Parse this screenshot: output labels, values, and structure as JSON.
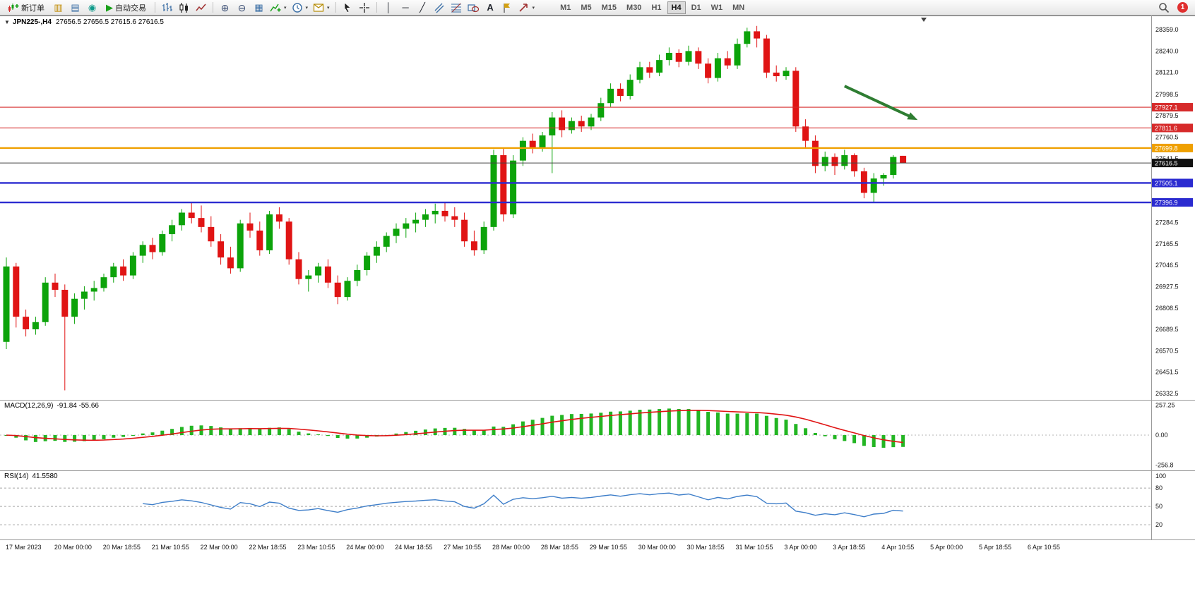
{
  "toolbar": {
    "new_order_label": "新订单",
    "autotrading_label": "自动交易",
    "timeframes": [
      "M1",
      "M5",
      "M15",
      "M30",
      "H1",
      "H4",
      "D1",
      "W1",
      "MN"
    ],
    "active_timeframe": "H4",
    "text_tool_label": "A",
    "notification_badge": "1"
  },
  "icons": {
    "one_click": "▼",
    "new_chart": "▥",
    "profiles": "▤",
    "data_window": "◉",
    "autotrading_play": "▶",
    "zoom_in": "⊕",
    "zoom_out": "⊖",
    "tiles": "▦",
    "vline": "│",
    "hline": "─",
    "trendline": "╱",
    "caret": "▾"
  },
  "chart": {
    "title_symbol": "JPN225-,H4",
    "title_ohlc": "27656.5 27656.5 27615.6 27616.5"
  },
  "colors": {
    "up": "#0ca30a",
    "down": "#e01414",
    "macd_hist": "#23b523",
    "macd_signal": "#e01414",
    "rsi_line": "#3e7ec9",
    "line_red": "#d62a2a",
    "line_orange": "#efa000",
    "line_blue": "#2b2bd0",
    "current_price_bg": "#111111",
    "arrow_green": "#2e7d32"
  },
  "chart_data": {
    "type": "candlestick",
    "symbol": "JPN225-",
    "timeframe": "H4",
    "ylim": [
      26297,
      28438
    ],
    "candles": [
      [
        26620,
        27090,
        26580,
        27040
      ],
      [
        27040,
        27060,
        26700,
        26760
      ],
      [
        26760,
        26800,
        26650,
        26690
      ],
      [
        26690,
        26760,
        26660,
        26730
      ],
      [
        26730,
        26980,
        26710,
        26950
      ],
      [
        26950,
        27000,
        26870,
        26910
      ],
      [
        26910,
        26940,
        26350,
        26760
      ],
      [
        26760,
        26890,
        26720,
        26860
      ],
      [
        26860,
        26930,
        26800,
        26900
      ],
      [
        26900,
        26960,
        26850,
        26920
      ],
      [
        26920,
        27000,
        26900,
        26980
      ],
      [
        26980,
        27060,
        26950,
        27040
      ],
      [
        27040,
        27080,
        26960,
        26990
      ],
      [
        26990,
        27120,
        26970,
        27100
      ],
      [
        27100,
        27180,
        27060,
        27160
      ],
      [
        27160,
        27200,
        27080,
        27120
      ],
      [
        27120,
        27240,
        27100,
        27220
      ],
      [
        27220,
        27300,
        27180,
        27270
      ],
      [
        27270,
        27360,
        27240,
        27340
      ],
      [
        27340,
        27400,
        27280,
        27310
      ],
      [
        27310,
        27380,
        27230,
        27260
      ],
      [
        27260,
        27320,
        27150,
        27180
      ],
      [
        27180,
        27220,
        27050,
        27090
      ],
      [
        27090,
        27150,
        27000,
        27030
      ],
      [
        27030,
        27300,
        27010,
        27280
      ],
      [
        27280,
        27340,
        27200,
        27240
      ],
      [
        27240,
        27290,
        27100,
        27130
      ],
      [
        27130,
        27350,
        27110,
        27330
      ],
      [
        27330,
        27370,
        27250,
        27290
      ],
      [
        27290,
        27310,
        27050,
        27080
      ],
      [
        27080,
        27120,
        26940,
        26970
      ],
      [
        26970,
        27020,
        26900,
        26990
      ],
      [
        26990,
        27060,
        26950,
        27040
      ],
      [
        27040,
        27080,
        26920,
        26950
      ],
      [
        26950,
        26990,
        26830,
        26870
      ],
      [
        26870,
        26980,
        26850,
        26960
      ],
      [
        26960,
        27050,
        26930,
        27020
      ],
      [
        27020,
        27120,
        26990,
        27100
      ],
      [
        27100,
        27180,
        27060,
        27150
      ],
      [
        27150,
        27230,
        27120,
        27210
      ],
      [
        27210,
        27280,
        27170,
        27250
      ],
      [
        27250,
        27310,
        27200,
        27280
      ],
      [
        27280,
        27340,
        27230,
        27300
      ],
      [
        27300,
        27360,
        27260,
        27330
      ],
      [
        27330,
        27390,
        27280,
        27350
      ],
      [
        27350,
        27400,
        27290,
        27320
      ],
      [
        27320,
        27370,
        27260,
        27300
      ],
      [
        27300,
        27340,
        27150,
        27180
      ],
      [
        27180,
        27240,
        27100,
        27130
      ],
      [
        27130,
        27290,
        27110,
        27260
      ],
      [
        27260,
        27690,
        27240,
        27660
      ],
      [
        27660,
        27700,
        27290,
        27330
      ],
      [
        27330,
        27660,
        27310,
        27630
      ],
      [
        27630,
        27760,
        27600,
        27740
      ],
      [
        27740,
        27780,
        27670,
        27700
      ],
      [
        27700,
        27790,
        27680,
        27770
      ],
      [
        27770,
        27900,
        27560,
        27870
      ],
      [
        27870,
        27910,
        27760,
        27800
      ],
      [
        27800,
        27870,
        27780,
        27850
      ],
      [
        27850,
        27880,
        27790,
        27820
      ],
      [
        27820,
        27890,
        27800,
        27870
      ],
      [
        27870,
        27980,
        27850,
        27950
      ],
      [
        27950,
        28060,
        27930,
        28030
      ],
      [
        28030,
        28060,
        27960,
        27990
      ],
      [
        27990,
        28110,
        27970,
        28080
      ],
      [
        28080,
        28180,
        28060,
        28150
      ],
      [
        28150,
        28180,
        28090,
        28120
      ],
      [
        28120,
        28220,
        28100,
        28190
      ],
      [
        28190,
        28260,
        28160,
        28230
      ],
      [
        28230,
        28250,
        28150,
        28180
      ],
      [
        28180,
        28270,
        28160,
        28240
      ],
      [
        28240,
        28260,
        28140,
        28170
      ],
      [
        28170,
        28200,
        28060,
        28090
      ],
      [
        28090,
        28230,
        28070,
        28200
      ],
      [
        28200,
        28240,
        28140,
        28160
      ],
      [
        28160,
        28310,
        28140,
        28280
      ],
      [
        28280,
        28370,
        28260,
        28350
      ],
      [
        28350,
        28380,
        28260,
        28310
      ],
      [
        28310,
        28330,
        28090,
        28120
      ],
      [
        28120,
        28160,
        28070,
        28100
      ],
      [
        28100,
        28150,
        28080,
        28130
      ],
      [
        28130,
        28150,
        27790,
        27820
      ],
      [
        27820,
        27860,
        27700,
        27740
      ],
      [
        27740,
        27770,
        27560,
        27600
      ],
      [
        27600,
        27680,
        27570,
        27650
      ],
      [
        27650,
        27670,
        27550,
        27600
      ],
      [
        27600,
        27690,
        27580,
        27660
      ],
      [
        27660,
        27670,
        27540,
        27570
      ],
      [
        27570,
        27590,
        27420,
        27450
      ],
      [
        27450,
        27560,
        27400,
        27530
      ],
      [
        27530,
        27560,
        27490,
        27550
      ],
      [
        27550,
        27660,
        27530,
        27650
      ],
      [
        27656.5,
        27656.5,
        27615.6,
        27616.5
      ]
    ],
    "x_axis_labels": [
      "17 Mar 2023",
      "20 Mar 00:00",
      "20 Mar 18:55",
      "21 Mar 10:55",
      "22 Mar 00:00",
      "22 Mar 18:55",
      "23 Mar 10:55",
      "24 Mar 00:00",
      "24 Mar 18:55",
      "27 Mar 10:55",
      "28 Mar 00:00",
      "28 Mar 18:55",
      "29 Mar 10:55",
      "30 Mar 00:00",
      "30 Mar 18:55",
      "31 Mar 10:55",
      "3 Apr 00:00",
      "3 Apr 18:55",
      "4 Apr 10:55",
      "5 Apr 00:00",
      "5 Apr 18:55",
      "6 Apr 10:55"
    ],
    "y_axis_labels": [
      {
        "t": "28359.0",
        "v": 28359.0
      },
      {
        "t": "28240.0",
        "v": 28240.0
      },
      {
        "t": "28121.0",
        "v": 28121.0
      },
      {
        "t": "27998.5",
        "v": 27998.5
      },
      {
        "t": "27879.5",
        "v": 27879.5
      },
      {
        "t": "27760.5",
        "v": 27760.5
      },
      {
        "t": "27641.5",
        "v": 27641.5
      },
      {
        "t": "27284.5",
        "v": 27284.5
      },
      {
        "t": "27165.5",
        "v": 27165.5
      },
      {
        "t": "27046.5",
        "v": 27046.5
      },
      {
        "t": "26927.5",
        "v": 26927.5
      },
      {
        "t": "26808.5",
        "v": 26808.5
      },
      {
        "t": "26689.5",
        "v": 26689.5
      },
      {
        "t": "26570.5",
        "v": 26570.5
      },
      {
        "t": "26451.5",
        "v": 26451.5
      },
      {
        "t": "26332.5",
        "v": 26332.5
      }
    ],
    "hlines": [
      {
        "value": 27927.1,
        "color": "#d62a2a",
        "width": 1.2
      },
      {
        "value": 27811.6,
        "color": "#d62a2a",
        "width": 1.2
      },
      {
        "value": 27699.8,
        "color": "#efa000",
        "width": 2.4
      },
      {
        "value": 27505.1,
        "color": "#2b2bd0",
        "width": 2.4
      },
      {
        "value": 27396.9,
        "color": "#2b2bd0",
        "width": 2.4
      }
    ],
    "price_tags": [
      {
        "t": "27927.1",
        "v": 27927.1,
        "color": "#d62a2a"
      },
      {
        "t": "27811.6",
        "v": 27811.6,
        "color": "#d62a2a"
      },
      {
        "t": "27699.8",
        "v": 27699.8,
        "color": "#efa000"
      },
      {
        "t": "27616.5",
        "v": 27616.5,
        "color": "#111111"
      },
      {
        "t": "27505.1",
        "v": 27505.1,
        "color": "#2b2bd0"
      },
      {
        "t": "27396.9",
        "v": 27396.9,
        "color": "#2b2bd0"
      }
    ],
    "current_price": {
      "t": "27616.5",
      "value": 27616.5
    },
    "annotation_arrow": {
      "from": {
        "bar": 86,
        "price": 28045
      },
      "to": {
        "bar": 93.5,
        "price": 27856
      }
    },
    "macd": {
      "label": "MACD(12,26,9)",
      "values_text": "-91.84 -55.66",
      "params": [
        12,
        26,
        9
      ],
      "ylim": [
        -302,
        302
      ],
      "axis_labels": [
        {
          "t": "257.25",
          "v": 257.25
        },
        {
          "t": "0.00",
          "v": 0
        },
        {
          "t": "-256.8",
          "v": -256.8
        }
      ]
    },
    "rsi": {
      "label": "RSI(14)",
      "value_text": "41.5580",
      "period": 14,
      "ylim": [
        -4,
        109
      ],
      "levels": [
        80,
        50,
        20
      ],
      "axis_labels": [
        {
          "t": "100",
          "v": 100
        },
        {
          "t": "80",
          "v": 80
        },
        {
          "t": "50",
          "v": 50
        },
        {
          "t": "20",
          "v": 20
        }
      ]
    }
  }
}
